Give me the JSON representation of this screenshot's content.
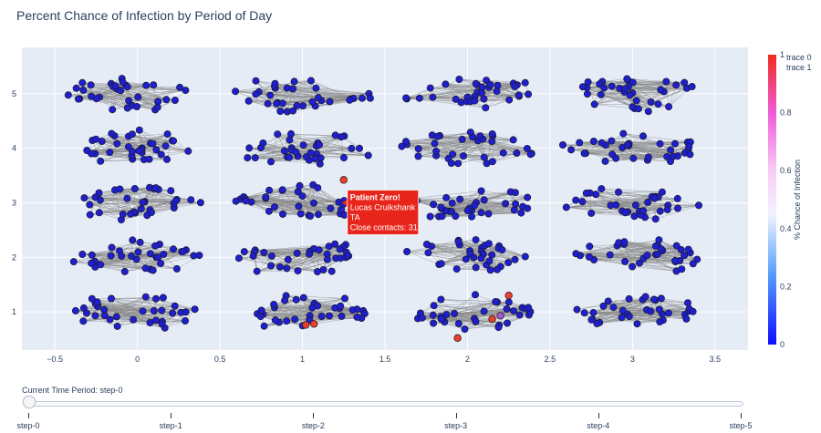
{
  "chart_data": {
    "type": "scatter",
    "title": "Percent Chance of Infection by Period of Day",
    "xlim": [
      -0.7,
      3.7
    ],
    "ylim": [
      0.3,
      5.85
    ],
    "x_ticks": [
      "−0.5",
      "0",
      "0.5",
      "1",
      "1.5",
      "2",
      "2.5",
      "3",
      "3.5"
    ],
    "x_tick_values": [
      -0.5,
      0,
      0.5,
      1,
      1.5,
      2,
      2.5,
      3,
      3.5
    ],
    "y_ticks": [
      "1",
      "2",
      "3",
      "4",
      "5"
    ],
    "y_tick_values": [
      1,
      2,
      3,
      4,
      5
    ],
    "grid": true,
    "legend_position": "top-right",
    "legend": [
      "trace 0",
      "trace 1"
    ],
    "colorbar": {
      "title": "% Chance of Infection",
      "ticks": [
        "0",
        "0.2",
        "0.4",
        "0.6",
        "0.8",
        "1"
      ],
      "tick_values": [
        0,
        0.2,
        0.4,
        0.6,
        0.8,
        1
      ]
    },
    "clusters": [
      {
        "x": 0,
        "y": 5
      },
      {
        "x": 0,
        "y": 4
      },
      {
        "x": 0,
        "y": 3
      },
      {
        "x": 0,
        "y": 2
      },
      {
        "x": 0,
        "y": 1
      },
      {
        "x": 1,
        "y": 5
      },
      {
        "x": 1,
        "y": 4
      },
      {
        "x": 1,
        "y": 3
      },
      {
        "x": 1,
        "y": 2
      },
      {
        "x": 1,
        "y": 1
      },
      {
        "x": 2,
        "y": 5
      },
      {
        "x": 2,
        "y": 4
      },
      {
        "x": 2,
        "y": 3
      },
      {
        "x": 2,
        "y": 2
      },
      {
        "x": 2,
        "y": 1
      },
      {
        "x": 3,
        "y": 5
      },
      {
        "x": 3,
        "y": 4
      },
      {
        "x": 3,
        "y": 3
      },
      {
        "x": 3,
        "y": 2
      },
      {
        "x": 3,
        "y": 1
      }
    ],
    "infected_points": [
      {
        "x": 1.25,
        "y": 3.42,
        "chance": 1.0
      },
      {
        "x": 1.07,
        "y": 0.78,
        "chance": 0.9
      },
      {
        "x": 1.02,
        "y": 0.76,
        "chance": 0.8
      },
      {
        "x": 1.94,
        "y": 0.52,
        "chance": 0.9
      },
      {
        "x": 2.15,
        "y": 0.87,
        "chance": 0.85
      },
      {
        "x": 2.25,
        "y": 1.3,
        "chance": 0.95
      },
      {
        "x": 2.2,
        "y": 0.93,
        "chance": 0.6
      }
    ],
    "tooltip": {
      "x": 1.25,
      "y": 3.0,
      "lines": [
        "Patient Zero!",
        "Lucas Cruikshank",
        "TA",
        "Close contacts: 31"
      ]
    }
  },
  "colors": {
    "plot_bg": "#e5ecf6",
    "node": "#1f1fd0",
    "edge": "#8a8a8a",
    "infected": "#e8402c",
    "tooltip_bg": "#e8251a"
  },
  "slider": {
    "label": "Current Time Period: step-0",
    "value": 0,
    "steps": [
      "step-0",
      "step-1",
      "step-2",
      "step-3",
      "step-4",
      "step-5"
    ]
  }
}
